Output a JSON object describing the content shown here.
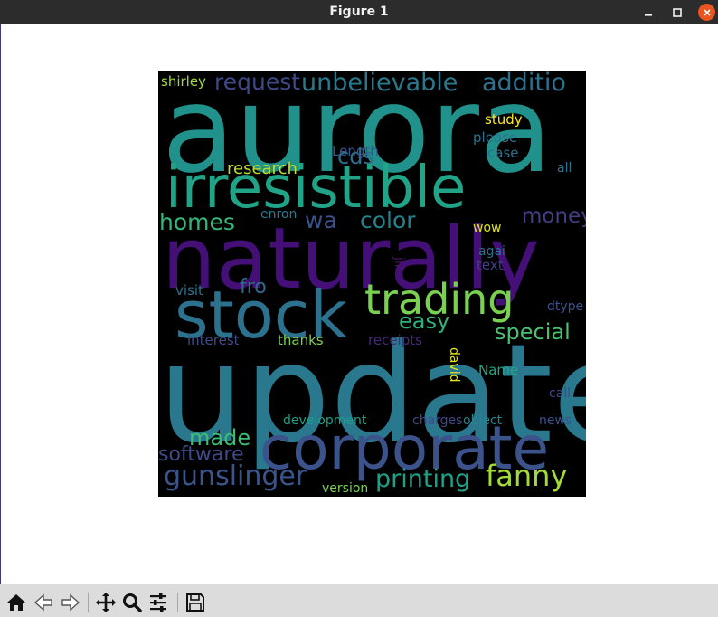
{
  "window": {
    "title": "Figure 1"
  },
  "colors": {
    "titlebar_bg": "#2c2c2c",
    "close_button": "#e9541f",
    "toolbar_bg": "#dcdcdc",
    "cloud_bg": "#000000"
  },
  "toolbar": {
    "buttons": [
      {
        "name": "home-button",
        "icon": "home-icon"
      },
      {
        "name": "back-button",
        "icon": "back-arrow-icon"
      },
      {
        "name": "forward-button",
        "icon": "forward-arrow-icon"
      },
      {
        "name": "pan-button",
        "icon": "move-icon"
      },
      {
        "name": "zoom-button",
        "icon": "magnifier-icon"
      },
      {
        "name": "configure-subplots-button",
        "icon": "sliders-icon"
      },
      {
        "name": "save-button",
        "icon": "floppy-disk-icon"
      }
    ]
  },
  "wordcloud": {
    "words": [
      {
        "text": "aurora",
        "color": "#21918c"
      },
      {
        "text": "irresistible",
        "color": "#20a386"
      },
      {
        "text": "naturally",
        "color": "#440f76"
      },
      {
        "text": "update",
        "color": "#2a788e"
      },
      {
        "text": "stock",
        "color": "#2c718e"
      },
      {
        "text": "corporate",
        "color": "#3b528b"
      },
      {
        "text": "trading",
        "color": "#7ad151"
      },
      {
        "text": "unbelievable",
        "color": "#2a788e"
      },
      {
        "text": "additio",
        "color": "#2c728e"
      },
      {
        "text": "request",
        "color": "#3e4989"
      },
      {
        "text": "shirley",
        "color": "#a2da37"
      },
      {
        "text": "gunslinger",
        "color": "#3a548c"
      },
      {
        "text": "printing",
        "color": "#1fa088"
      },
      {
        "text": "fanny",
        "color": "#a5db36"
      },
      {
        "text": "software",
        "color": "#3e4a89"
      },
      {
        "text": "made",
        "color": "#3dbc74"
      },
      {
        "text": "homes",
        "color": "#35b779"
      },
      {
        "text": "research",
        "color": "#bddf26"
      },
      {
        "text": "color",
        "color": "#25838e"
      },
      {
        "text": "wa",
        "color": "#3b528b"
      },
      {
        "text": "cds",
        "color": "#2e6f8e"
      },
      {
        "text": "money",
        "color": "#433e85"
      },
      {
        "text": "easy",
        "color": "#2eb37c"
      },
      {
        "text": "special",
        "color": "#4ac16d"
      },
      {
        "text": "fro",
        "color": "#31688e"
      },
      {
        "text": "study",
        "color": "#fde725"
      },
      {
        "text": "please",
        "color": "#2c728e"
      },
      {
        "text": "case",
        "color": "#2c728e"
      },
      {
        "text": "Length",
        "color": "#39568c"
      },
      {
        "text": "all",
        "color": "#2c718e"
      },
      {
        "text": "enron",
        "color": "#2a788e"
      },
      {
        "text": "wow",
        "color": "#dde318"
      },
      {
        "text": "agai",
        "color": "#2e6f8e"
      },
      {
        "text": "text",
        "color": "#423f85"
      },
      {
        "text": "jim",
        "color": "#471365"
      },
      {
        "text": "visit",
        "color": "#2c728e"
      },
      {
        "text": "dtype",
        "color": "#3b528b"
      },
      {
        "text": "interest",
        "color": "#3e4a89"
      },
      {
        "text": "thanks",
        "color": "#7ad151"
      },
      {
        "text": "receipts",
        "color": "#482878"
      },
      {
        "text": "david",
        "color": "#e5e419"
      },
      {
        "text": "Name",
        "color": "#21a685"
      },
      {
        "text": "call",
        "color": "#3e4989"
      },
      {
        "text": "development",
        "color": "#1f9e89"
      },
      {
        "text": "charges",
        "color": "#3e4989"
      },
      {
        "text": "object",
        "color": "#25858e"
      },
      {
        "text": "news",
        "color": "#3b528b"
      },
      {
        "text": "version",
        "color": "#7ad151"
      }
    ]
  }
}
